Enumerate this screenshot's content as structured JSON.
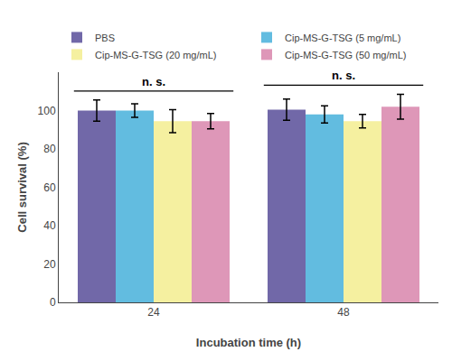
{
  "chart_data": {
    "type": "bar",
    "categories": [
      "24",
      "48"
    ],
    "series": [
      {
        "name": "PBS",
        "color": "#7168a8",
        "values": [
          100.0,
          100.5
        ],
        "errors": [
          5.5,
          5.5
        ]
      },
      {
        "name": "Cip-MS-G-TSG (5 mg/mL)",
        "color": "#62bce0",
        "values": [
          100.0,
          98.0
        ],
        "errors": [
          3.5,
          4.5
        ]
      },
      {
        "name": "Cip-MS-G-TSG (20 mg/mL)",
        "color": "#f5f0a0",
        "values": [
          94.5,
          94.5
        ],
        "errors": [
          6.0,
          3.5
        ]
      },
      {
        "name": "Cip-MS-G-TSG (50 mg/mL)",
        "color": "#de97b8",
        "values": [
          94.5,
          102.0
        ],
        "errors": [
          4.0,
          6.5
        ]
      }
    ],
    "xlabel": "Incubation time (h)",
    "ylabel": "Cell survival (%)",
    "ylim": [
      0,
      120
    ],
    "yticks": [
      0,
      20,
      40,
      60,
      80,
      100
    ],
    "grid": false,
    "legend": "top",
    "annotations": [
      {
        "text": "n. s.",
        "x": "24"
      },
      {
        "text": "n. s.",
        "x": "48"
      }
    ]
  }
}
